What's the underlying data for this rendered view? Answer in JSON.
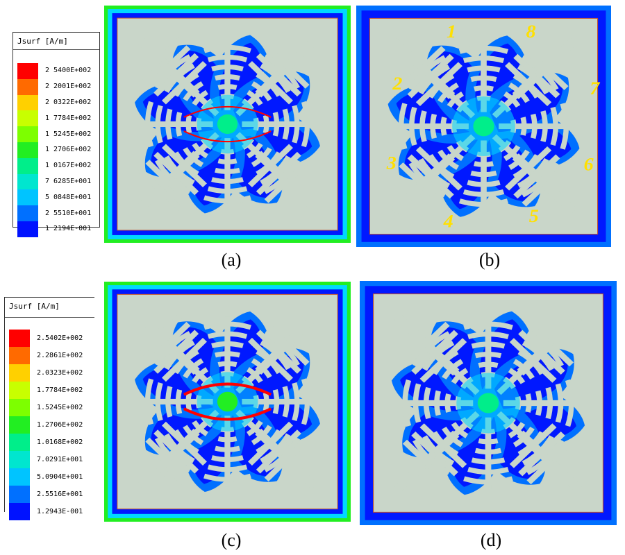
{
  "legend_top": {
    "title": "Jsurf [A/m]",
    "entries": [
      {
        "label": "2 5400E+002",
        "color": "#ff0000"
      },
      {
        "label": "2 2001E+002",
        "color": "#ff6a00"
      },
      {
        "label": "2 0322E+002",
        "color": "#ffd000"
      },
      {
        "label": "1 7784E+002",
        "color": "#c8ff00"
      },
      {
        "label": "1 5245E+002",
        "color": "#7dff00"
      },
      {
        "label": "1 2706E+002",
        "color": "#22ee22"
      },
      {
        "label": "1 0167E+002",
        "color": "#00ee8a"
      },
      {
        "label": "7 6285E+001",
        "color": "#00e6cf"
      },
      {
        "label": "5 0848E+001",
        "color": "#00c4ff"
      },
      {
        "label": "2 5510E+001",
        "color": "#0070ff"
      },
      {
        "label": "1 2194E-001",
        "color": "#0012ff"
      }
    ]
  },
  "legend_bottom": {
    "title": "Jsurf [A/m]",
    "entries": [
      {
        "label": "2.5402E+002",
        "color": "#ff0000"
      },
      {
        "label": "2.2861E+002",
        "color": "#ff6a00"
      },
      {
        "label": "2.0323E+002",
        "color": "#ffd000"
      },
      {
        "label": "1.7784E+002",
        "color": "#c8ff00"
      },
      {
        "label": "1.5245E+002",
        "color": "#7dff00"
      },
      {
        "label": "1.2706E+002",
        "color": "#22ee22"
      },
      {
        "label": "1.0168E+002",
        "color": "#00ee8a"
      },
      {
        "label": "7.0291E+001",
        "color": "#00e6cf"
      },
      {
        "label": "5.0904E+001",
        "color": "#00c4ff"
      },
      {
        "label": "2.5516E+001",
        "color": "#0070ff"
      },
      {
        "label": "1.2943E-001",
        "color": "#0012ff"
      }
    ]
  },
  "panels": [
    {
      "id": "a",
      "caption": "(a)",
      "numbers": []
    },
    {
      "id": "b",
      "caption": "(b)",
      "numbers": [
        "1",
        "2",
        "3",
        "4",
        "5",
        "6",
        "7",
        "8"
      ]
    },
    {
      "id": "c",
      "caption": "(c)",
      "numbers": []
    },
    {
      "id": "d",
      "caption": "(d)",
      "numbers": []
    }
  ],
  "colors": {
    "metal": "#c9d6c9",
    "background_blue": "#0018ff",
    "mid_blue": "#0070ff",
    "cyan": "#00d8ff",
    "hot": "#ff0000",
    "number_label": "#ffe000"
  }
}
